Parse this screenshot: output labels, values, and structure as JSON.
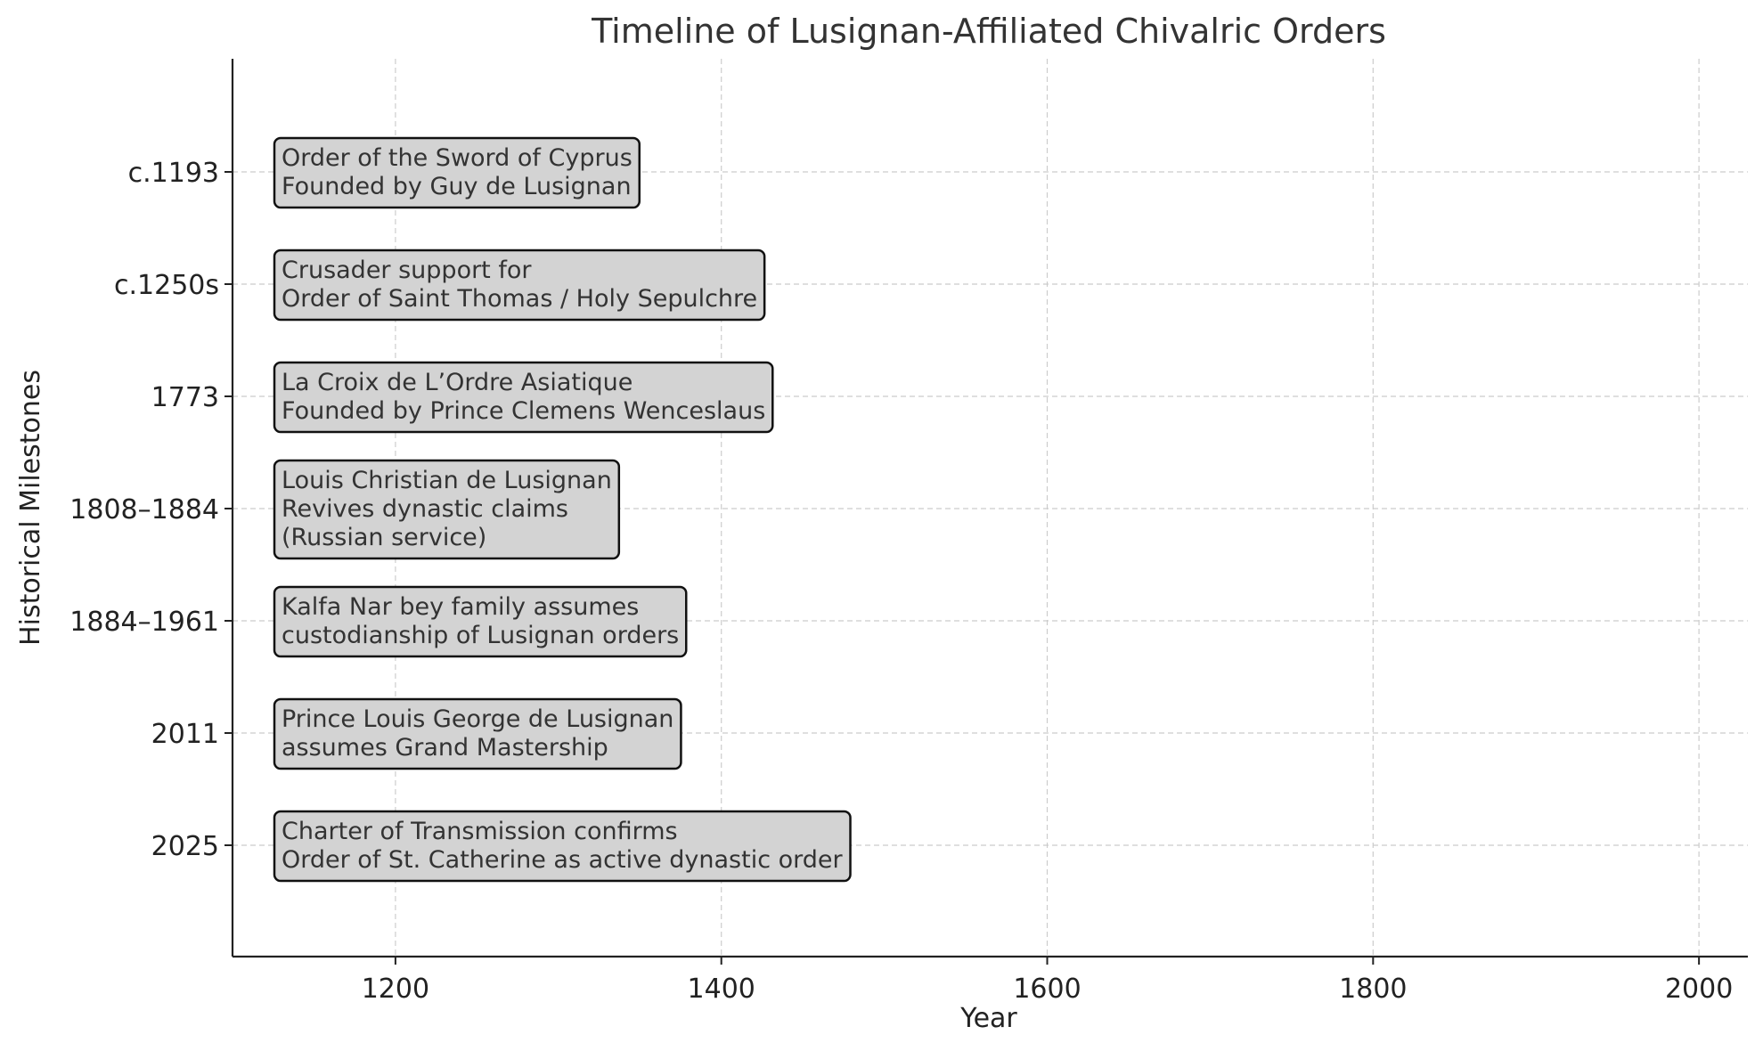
{
  "chart_data": {
    "type": "timeline",
    "title": "Timeline of Lusignan-Affiliated Chivalric Orders",
    "xlabel": "Year",
    "ylabel": "Historical Milestones",
    "xlim": [
      1100,
      2030
    ],
    "x_ticks": [
      1200,
      1400,
      1600,
      1800,
      2000
    ],
    "grid": true,
    "box_color": "#d3d3d3",
    "events": [
      {
        "label": "c.1193",
        "text": [
          "Order of the Sword of Cyprus",
          "Founded by Guy de Lusignan"
        ]
      },
      {
        "label": "c.1250s",
        "text": [
          "Crusader support for",
          "Order of Saint Thomas / Holy Sepulchre"
        ]
      },
      {
        "label": "1773",
        "text": [
          "La Croix de L’Ordre Asiatique",
          "Founded by Prince Clemens Wenceslaus"
        ]
      },
      {
        "label": "1808–1884",
        "text": [
          "Louis Christian de Lusignan",
          "Revives dynastic claims",
          "(Russian service)"
        ]
      },
      {
        "label": "1884–1961",
        "text": [
          "Kalfa Nar bey family assumes",
          "custodianship of Lusignan orders"
        ]
      },
      {
        "label": "2011",
        "text": [
          "Prince Louis George de Lusignan",
          "assumes Grand Mastership"
        ]
      },
      {
        "label": "2025",
        "text": [
          "Charter of Transmission confirms",
          "Order of St. Catherine as active dynastic order"
        ]
      }
    ]
  }
}
